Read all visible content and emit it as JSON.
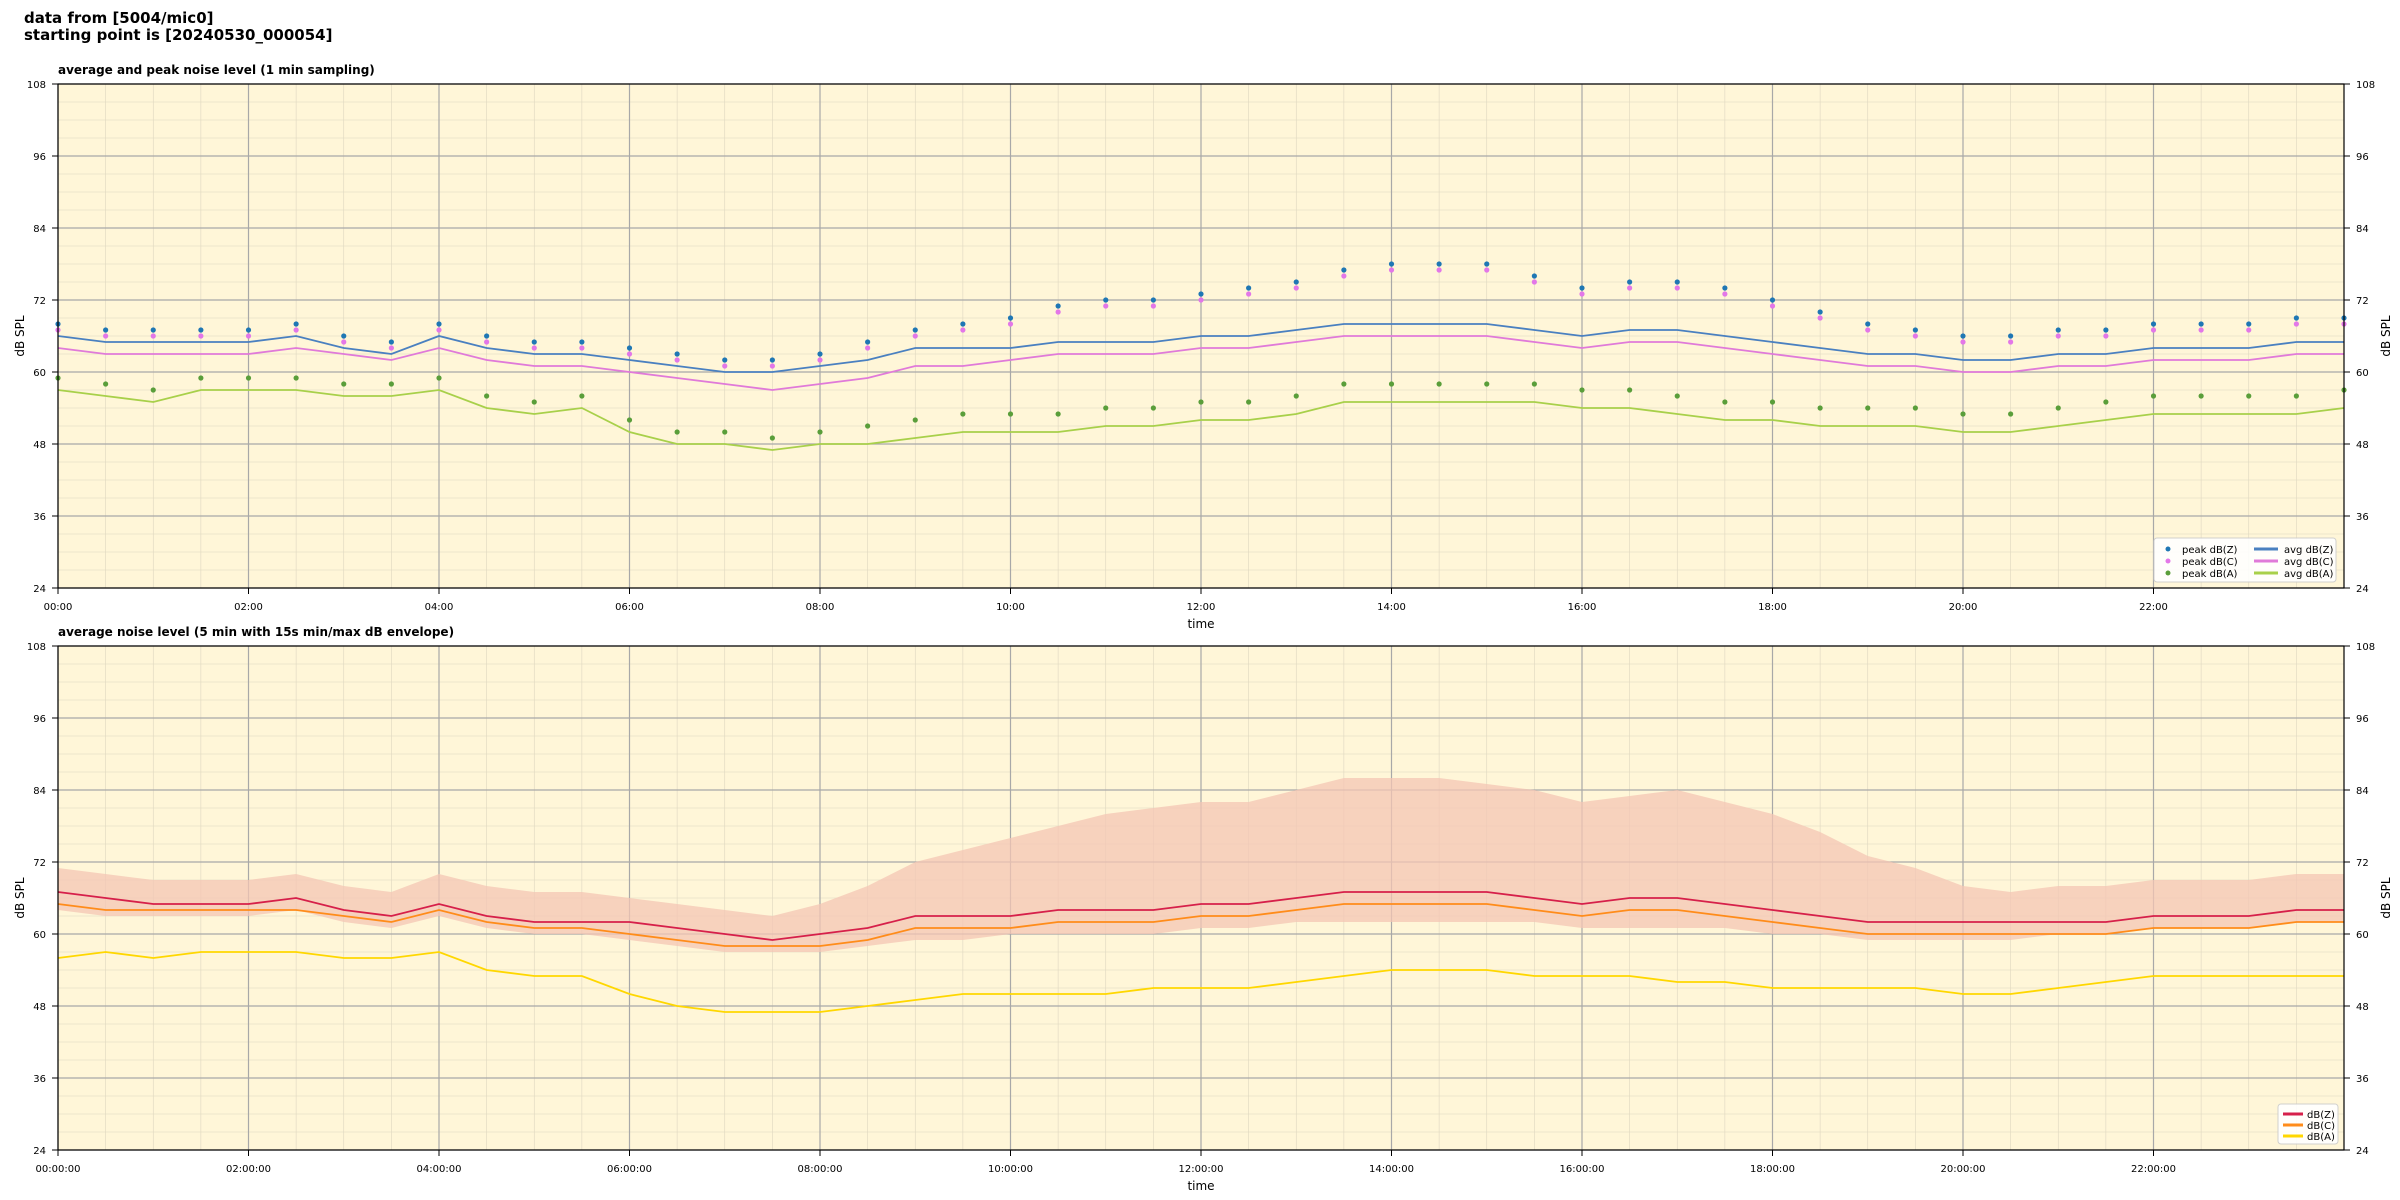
{
  "figure": {
    "title_line1": "data from [5004/mic0]",
    "title_line2": "starting point is [20240530_000054]"
  },
  "colors": {
    "background": "#fff6d8",
    "peak_z": "#1f77b4",
    "peak_c": "#e377e8",
    "peak_a": "#5a9e3a",
    "avg_z": "#4a80c0",
    "avg_c": "#e07ad9",
    "avg_a": "#a8d04a",
    "z5": "#d6204a",
    "c5": "#ff8c1a",
    "a5": "#ffd700",
    "envelope": "#f4c6b4"
  },
  "chart_data": [
    {
      "type": "line",
      "title": "average and peak noise level (1 min sampling)",
      "xlabel": "time",
      "ylabel": "dB SPL",
      "xlim": [
        0,
        24
      ],
      "ylim": [
        24,
        108
      ],
      "xticks": [
        "00:00",
        "02:00",
        "04:00",
        "06:00",
        "08:00",
        "10:00",
        "12:00",
        "14:00",
        "16:00",
        "18:00",
        "20:00",
        "22:00"
      ],
      "yticks": [
        24,
        36,
        48,
        60,
        72,
        84,
        96,
        108
      ],
      "grid": true,
      "legend_position": "lower-right",
      "x_hours": [
        0,
        0.5,
        1,
        1.5,
        2,
        2.5,
        3,
        3.5,
        4,
        4.5,
        5,
        5.5,
        6,
        6.5,
        7,
        7.5,
        8,
        8.5,
        9,
        9.5,
        10,
        10.5,
        11,
        11.5,
        12,
        12.5,
        13,
        13.5,
        14,
        14.5,
        15,
        15.5,
        16,
        16.5,
        17,
        17.5,
        18,
        18.5,
        19,
        19.5,
        20,
        20.5,
        21,
        21.5,
        22,
        22.5,
        23,
        23.5,
        24
      ],
      "series": [
        {
          "name": "avg dB(Z)",
          "kind": "line",
          "color_key": "avg_z",
          "values": [
            66,
            65,
            65,
            65,
            65,
            66,
            64,
            63,
            66,
            64,
            63,
            63,
            62,
            61,
            60,
            60,
            61,
            62,
            64,
            64,
            64,
            65,
            65,
            65,
            66,
            66,
            67,
            68,
            68,
            68,
            68,
            67,
            66,
            67,
            67,
            66,
            65,
            64,
            63,
            63,
            62,
            62,
            63,
            63,
            64,
            64,
            64,
            65,
            65
          ]
        },
        {
          "name": "avg dB(C)",
          "kind": "line",
          "color_key": "avg_c",
          "values": [
            64,
            63,
            63,
            63,
            63,
            64,
            63,
            62,
            64,
            62,
            61,
            61,
            60,
            59,
            58,
            57,
            58,
            59,
            61,
            61,
            62,
            63,
            63,
            63,
            64,
            64,
            65,
            66,
            66,
            66,
            66,
            65,
            64,
            65,
            65,
            64,
            63,
            62,
            61,
            61,
            60,
            60,
            61,
            61,
            62,
            62,
            62,
            63,
            63
          ]
        },
        {
          "name": "avg dB(A)",
          "kind": "line",
          "color_key": "avg_a",
          "values": [
            57,
            56,
            55,
            57,
            57,
            57,
            56,
            56,
            57,
            54,
            53,
            54,
            50,
            48,
            48,
            47,
            48,
            48,
            49,
            50,
            50,
            50,
            51,
            51,
            52,
            52,
            53,
            55,
            55,
            55,
            55,
            55,
            54,
            54,
            53,
            52,
            52,
            51,
            51,
            51,
            50,
            50,
            51,
            52,
            53,
            53,
            53,
            53,
            54
          ]
        },
        {
          "name": "peak dB(Z)",
          "kind": "scatter",
          "color_key": "peak_z",
          "values": [
            68,
            67,
            67,
            67,
            67,
            68,
            66,
            65,
            68,
            66,
            65,
            65,
            64,
            63,
            62,
            62,
            63,
            65,
            67,
            68,
            69,
            71,
            72,
            72,
            73,
            74,
            75,
            77,
            78,
            78,
            78,
            76,
            74,
            75,
            75,
            74,
            72,
            70,
            68,
            67,
            66,
            66,
            67,
            67,
            68,
            68,
            68,
            69,
            69
          ]
        },
        {
          "name": "peak dB(C)",
          "kind": "scatter",
          "color_key": "peak_c",
          "values": [
            67,
            66,
            66,
            66,
            66,
            67,
            65,
            64,
            67,
            65,
            64,
            64,
            63,
            62,
            61,
            61,
            62,
            64,
            66,
            67,
            68,
            70,
            71,
            71,
            72,
            73,
            74,
            76,
            77,
            77,
            77,
            75,
            73,
            74,
            74,
            73,
            71,
            69,
            67,
            66,
            65,
            65,
            66,
            66,
            67,
            67,
            67,
            68,
            68
          ]
        },
        {
          "name": "peak dB(A)",
          "kind": "scatter",
          "color_key": "peak_a",
          "values": [
            59,
            58,
            57,
            59,
            59,
            59,
            58,
            58,
            59,
            56,
            55,
            56,
            52,
            50,
            50,
            49,
            50,
            51,
            52,
            53,
            53,
            53,
            54,
            54,
            55,
            55,
            56,
            58,
            58,
            58,
            58,
            58,
            57,
            57,
            56,
            55,
            55,
            54,
            54,
            54,
            53,
            53,
            54,
            55,
            56,
            56,
            56,
            56,
            57
          ]
        }
      ],
      "legend_entries": [
        "peak dB(Z)",
        "peak dB(C)",
        "peak dB(A)",
        "avg dB(Z)",
        "avg dB(C)",
        "avg dB(A)"
      ]
    },
    {
      "type": "line",
      "title": "average noise level (5 min with 15s min/max dB envelope)",
      "xlabel": "time",
      "ylabel": "dB SPL",
      "xlim": [
        0,
        24
      ],
      "ylim": [
        24,
        108
      ],
      "xticks": [
        "00:00:00",
        "02:00:00",
        "04:00:00",
        "06:00:00",
        "08:00:00",
        "10:00:00",
        "12:00:00",
        "14:00:00",
        "16:00:00",
        "18:00:00",
        "20:00:00",
        "22:00:00"
      ],
      "yticks": [
        24,
        36,
        48,
        60,
        72,
        84,
        96,
        108
      ],
      "grid": true,
      "legend_position": "lower-right",
      "x_hours": [
        0,
        0.5,
        1,
        1.5,
        2,
        2.5,
        3,
        3.5,
        4,
        4.5,
        5,
        5.5,
        6,
        6.5,
        7,
        7.5,
        8,
        8.5,
        9,
        9.5,
        10,
        10.5,
        11,
        11.5,
        12,
        12.5,
        13,
        13.5,
        14,
        14.5,
        15,
        15.5,
        16,
        16.5,
        17,
        17.5,
        18,
        18.5,
        19,
        19.5,
        20,
        20.5,
        21,
        21.5,
        22,
        22.5,
        23,
        23.5,
        24
      ],
      "envelope_max": [
        71,
        70,
        69,
        69,
        69,
        70,
        68,
        67,
        70,
        68,
        67,
        67,
        66,
        65,
        64,
        63,
        65,
        68,
        72,
        74,
        76,
        78,
        80,
        81,
        82,
        82,
        84,
        86,
        86,
        86,
        85,
        84,
        82,
        83,
        84,
        82,
        80,
        77,
        73,
        71,
        68,
        67,
        68,
        68,
        69,
        69,
        69,
        70,
        70
      ],
      "envelope_min": [
        64,
        63,
        63,
        63,
        63,
        64,
        62,
        61,
        63,
        61,
        60,
        60,
        59,
        58,
        57,
        57,
        57,
        58,
        59,
        59,
        60,
        60,
        60,
        60,
        61,
        61,
        62,
        62,
        62,
        62,
        62,
        62,
        61,
        61,
        61,
        61,
        60,
        60,
        59,
        59,
        59,
        59,
        60,
        60,
        61,
        61,
        61,
        62,
        62
      ],
      "series": [
        {
          "name": "dB(Z)",
          "color_key": "z5",
          "values": [
            67,
            66,
            65,
            65,
            65,
            66,
            64,
            63,
            65,
            63,
            62,
            62,
            62,
            61,
            60,
            59,
            60,
            61,
            63,
            63,
            63,
            64,
            64,
            64,
            65,
            65,
            66,
            67,
            67,
            67,
            67,
            66,
            65,
            66,
            66,
            65,
            64,
            63,
            62,
            62,
            62,
            62,
            62,
            62,
            63,
            63,
            63,
            64,
            64
          ]
        },
        {
          "name": "dB(C)",
          "color_key": "c5",
          "values": [
            65,
            64,
            64,
            64,
            64,
            64,
            63,
            62,
            64,
            62,
            61,
            61,
            60,
            59,
            58,
            58,
            58,
            59,
            61,
            61,
            61,
            62,
            62,
            62,
            63,
            63,
            64,
            65,
            65,
            65,
            65,
            64,
            63,
            64,
            64,
            63,
            62,
            61,
            60,
            60,
            60,
            60,
            60,
            60,
            61,
            61,
            61,
            62,
            62
          ]
        },
        {
          "name": "dB(A)",
          "color_key": "a5",
          "values": [
            56,
            57,
            56,
            57,
            57,
            57,
            56,
            56,
            57,
            54,
            53,
            53,
            50,
            48,
            47,
            47,
            47,
            48,
            49,
            50,
            50,
            50,
            50,
            51,
            51,
            51,
            52,
            53,
            54,
            54,
            54,
            53,
            53,
            53,
            52,
            52,
            51,
            51,
            51,
            51,
            50,
            50,
            51,
            52,
            53,
            53,
            53,
            53,
            53
          ]
        }
      ],
      "legend_entries": [
        "dB(Z)",
        "dB(C)",
        "dB(A)"
      ]
    }
  ]
}
